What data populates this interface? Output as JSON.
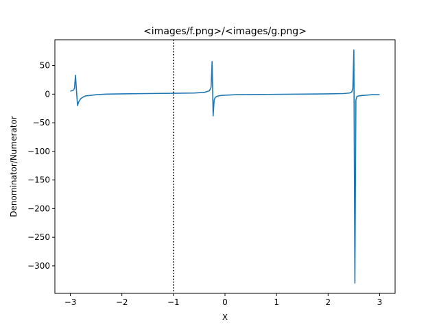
{
  "chart_data": {
    "type": "line",
    "title": "<images/f.png>/<images/g.png>",
    "xlabel": "X",
    "ylabel": "Denominator/Numerator",
    "xlim": [
      -3.3,
      3.3
    ],
    "ylim": [
      -348,
      95
    ],
    "x_ticks": [
      -3,
      -2,
      -1,
      0,
      1,
      2,
      3
    ],
    "x_tick_labels": [
      "−3",
      "−2",
      "−1",
      "0",
      "1",
      "2",
      "3"
    ],
    "y_ticks": [
      50,
      0,
      -50,
      -100,
      -150,
      -200,
      -250,
      -300
    ],
    "y_tick_labels": [
      "50",
      "0",
      "−50",
      "−100",
      "−150",
      "−200",
      "−250",
      "−300"
    ],
    "grid": false,
    "series": [
      {
        "color": "#1f77b4",
        "x": [
          -3.0,
          -2.94,
          -2.92,
          -2.9,
          -2.88,
          -2.86,
          -2.84,
          -2.8,
          -2.75,
          -2.7,
          -2.6,
          -2.5,
          -2.3,
          -2.0,
          -1.5,
          -1.0,
          -0.6,
          -0.4,
          -0.3,
          -0.27,
          -0.25,
          -0.23,
          -0.21,
          -0.19,
          -0.16,
          -0.12,
          -0.05,
          0.2,
          0.8,
          1.5,
          2.0,
          2.3,
          2.42,
          2.46,
          2.48,
          2.5,
          2.52,
          2.54,
          2.56,
          2.6,
          2.7,
          2.85,
          3.0
        ],
        "y": [
          5,
          7,
          10,
          33,
          5,
          -20,
          -14,
          -8,
          -5,
          -3,
          -2,
          -1,
          0,
          0.5,
          1,
          1.5,
          2,
          3,
          6,
          12,
          57,
          -38,
          -10,
          -6,
          -4,
          -3,
          -2,
          -1,
          -0.5,
          0,
          0.5,
          1,
          2,
          4,
          10,
          77,
          -330,
          -10,
          -4,
          -3,
          -2,
          -1,
          -1
        ]
      }
    ],
    "annotations": [
      {
        "type": "vline",
        "x": -1,
        "style": "dotted",
        "color": "#000000"
      }
    ]
  }
}
